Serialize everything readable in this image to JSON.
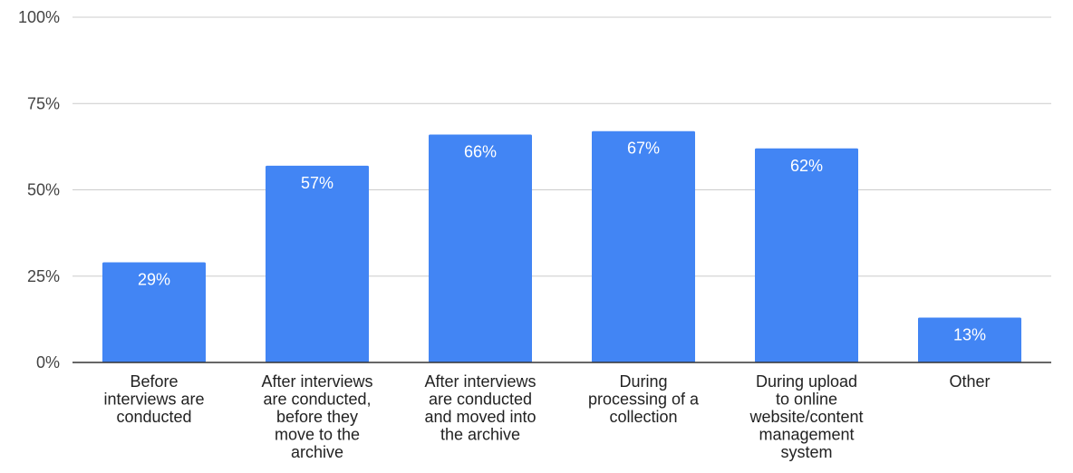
{
  "chart_data": {
    "type": "bar",
    "title": "",
    "xlabel": "",
    "ylabel": "",
    "categories": [
      [
        "Before",
        "interviews are",
        "conducted"
      ],
      [
        "After interviews",
        "are conducted,",
        "before they",
        "move to the",
        "archive"
      ],
      [
        "After interviews",
        "are conducted",
        "and moved into",
        "the archive"
      ],
      [
        "During",
        "processing of a",
        "collection"
      ],
      [
        "During upload",
        "to online",
        "website/content",
        "management",
        "system"
      ],
      [
        "Other"
      ]
    ],
    "values": [
      29,
      57,
      66,
      67,
      62,
      13
    ],
    "data_labels": [
      "29%",
      "57%",
      "66%",
      "67%",
      "62%",
      "13%"
    ],
    "ylim": [
      0,
      100
    ],
    "yticks": [
      0,
      25,
      50,
      75,
      100
    ],
    "ytick_labels": [
      "0%",
      "25%",
      "50%",
      "75%",
      "100%"
    ],
    "grid": true,
    "legend": "none",
    "bar_color": "#4285f4",
    "grid_color": "#cccccc",
    "axis_color": "#333333"
  }
}
